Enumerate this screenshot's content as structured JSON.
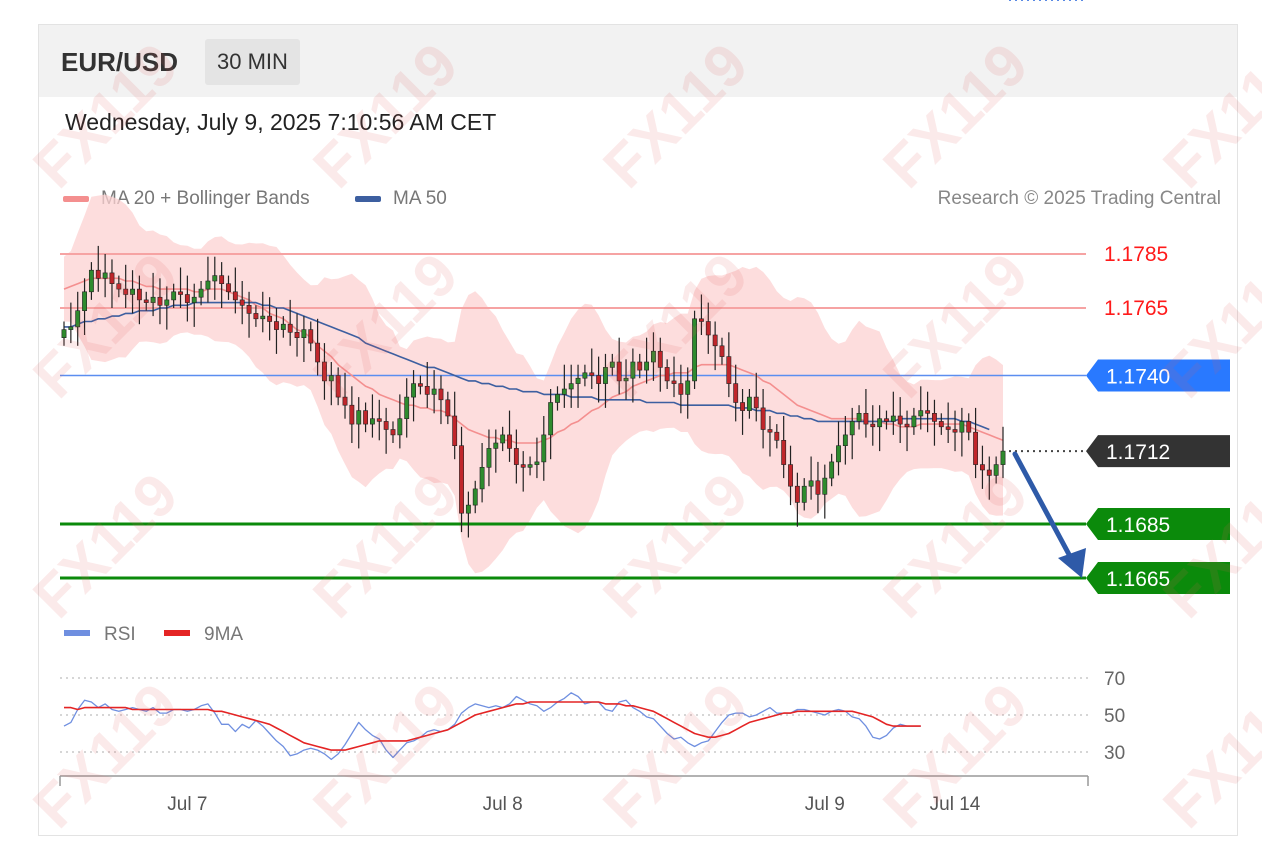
{
  "header": {
    "symbol": "EUR/USD",
    "interval": "30 MIN"
  },
  "datetime": "Wednesday, July 9, 2025 7:10:56 AM CET",
  "legend": {
    "ma20": {
      "label": "MA 20 + Bollinger Bands",
      "color": "#f48f8f"
    },
    "ma50": {
      "label": "MA 50",
      "color": "#3d5fa0"
    }
  },
  "credit": "Research © 2025 Trading Central",
  "rsi_legend": {
    "rsi": {
      "label": "RSI",
      "color": "#6f8fe0"
    },
    "ma9": {
      "label": "9MA",
      "color": "#e42424"
    }
  },
  "watermark": "FX119",
  "chart_data": [
    {
      "type": "candlestick",
      "ylim": [
        1.1652,
        1.1795
      ],
      "up_color": "#2e8b2e",
      "down_color": "#c0262b",
      "levels": [
        {
          "value": 1.1785,
          "label": "1.1785",
          "kind": "resistance",
          "color": "#ff1a1a"
        },
        {
          "value": 1.1765,
          "label": "1.1765",
          "kind": "resistance",
          "color": "#ff1a1a"
        },
        {
          "value": 1.174,
          "label": "1.1740",
          "kind": "pivot",
          "color": "#2979ff"
        },
        {
          "value": 1.1712,
          "label": "1.1712",
          "kind": "last",
          "color": "#333333"
        },
        {
          "value": 1.1685,
          "label": "1.1685",
          "kind": "support",
          "color": "#0b8a0b"
        },
        {
          "value": 1.1665,
          "label": "1.1665",
          "kind": "support",
          "color": "#0b8a0b"
        }
      ],
      "closes": [
        1.1757,
        1.1758,
        1.1764,
        1.1771,
        1.1779,
        1.1776,
        1.1778,
        1.1774,
        1.1772,
        1.177,
        1.1772,
        1.1768,
        1.1767,
        1.1769,
        1.1766,
        1.1768,
        1.1771,
        1.177,
        1.1767,
        1.1769,
        1.1772,
        1.1775,
        1.1777,
        1.1774,
        1.1771,
        1.1768,
        1.1766,
        1.1763,
        1.1761,
        1.1762,
        1.176,
        1.1757,
        1.1759,
        1.1756,
        1.1754,
        1.1757,
        1.1752,
        1.1745,
        1.1738,
        1.174,
        1.1732,
        1.1729,
        1.1722,
        1.1727,
        1.1722,
        1.1724,
        1.1723,
        1.172,
        1.1718,
        1.1724,
        1.1732,
        1.1737,
        1.1736,
        1.1733,
        1.1735,
        1.1731,
        1.1725,
        1.1714,
        1.1689,
        1.1692,
        1.1698,
        1.1706,
        1.1713,
        1.1715,
        1.1718,
        1.1713,
        1.1707,
        1.1706,
        1.1707,
        1.1708,
        1.1718,
        1.173,
        1.1733,
        1.1735,
        1.1737,
        1.1739,
        1.1741,
        1.174,
        1.1737,
        1.1743,
        1.1745,
        1.1738,
        1.1739,
        1.1745,
        1.1742,
        1.1745,
        1.1749,
        1.1743,
        1.1738,
        1.1737,
        1.1733,
        1.1738,
        1.1761,
        1.176,
        1.1755,
        1.1751,
        1.1747,
        1.1737,
        1.173,
        1.1727,
        1.1732,
        1.1728,
        1.172,
        1.1719,
        1.1716,
        1.1707,
        1.1699,
        1.1693,
        1.1699,
        1.1701,
        1.1696,
        1.1702,
        1.1708,
        1.1714,
        1.1718,
        1.1723,
        1.1726,
        1.1722,
        1.1721,
        1.1724,
        1.1723,
        1.1725,
        1.1722,
        1.1721,
        1.1725,
        1.1727,
        1.1726,
        1.1723,
        1.1721,
        1.172,
        1.1719,
        1.1723,
        1.1719,
        1.1707,
        1.1705,
        1.1703,
        1.1707,
        1.1712
      ],
      "ma20": [
        1.1772,
        1.1773,
        1.1774,
        1.1775,
        1.1776,
        1.1776,
        1.1776,
        1.1776,
        1.1776,
        1.1775,
        1.1775,
        1.1774,
        1.1773,
        1.1773,
        1.1772,
        1.1772,
        1.1772,
        1.1772,
        1.1772,
        1.1771,
        1.1771,
        1.1772,
        1.1772,
        1.1772,
        1.1771,
        1.177,
        1.1769,
        1.1768,
        1.1766,
        1.1765,
        1.1763,
        1.1762,
        1.1761,
        1.1759,
        1.1757,
        1.1756,
        1.1754,
        1.1751,
        1.1749,
        1.1747,
        1.1744,
        1.1742,
        1.174,
        1.1738,
        1.1736,
        1.1735,
        1.1733,
        1.1732,
        1.1731,
        1.173,
        1.1729,
        1.1729,
        1.1728,
        1.1728,
        1.1727,
        1.1727,
        1.1726,
        1.1724,
        1.1722,
        1.172,
        1.1719,
        1.1718,
        1.1717,
        1.1717,
        1.1716,
        1.1716,
        1.1715,
        1.1715,
        1.1715,
        1.1715,
        1.1716,
        1.1717,
        1.1719,
        1.172,
        1.1722,
        1.1723,
        1.1725,
        1.1727,
        1.1728,
        1.173,
        1.1732,
        1.1733,
        1.1734,
        1.1736,
        1.1737,
        1.1738,
        1.1739,
        1.174,
        1.174,
        1.1741,
        1.1741,
        1.1741,
        1.1743,
        1.1744,
        1.1744,
        1.1744,
        1.1744,
        1.1744,
        1.1743,
        1.1742,
        1.1741,
        1.174,
        1.1738,
        1.1737,
        1.1735,
        1.1733,
        1.1731,
        1.1729,
        1.1728,
        1.1727,
        1.1726,
        1.1725,
        1.1724,
        1.1724,
        1.1724,
        1.1724,
        1.1724,
        1.1723,
        1.1723,
        1.1723,
        1.1722,
        1.1722,
        1.1721,
        1.1721,
        1.1721,
        1.1722,
        1.1722,
        1.1722,
        1.1722,
        1.1722,
        1.1722,
        1.1722,
        1.1721,
        1.172,
        1.1719,
        1.1718,
        1.1717,
        1.1716
      ],
      "ma50": [
        1.1758,
        1.1758,
        1.1759,
        1.176,
        1.176,
        1.1761,
        1.1761,
        1.1762,
        1.1762,
        1.1763,
        1.1763,
        1.1764,
        1.1764,
        1.1764,
        1.1765,
        1.1765,
        1.1766,
        1.1766,
        1.1766,
        1.1767,
        1.1767,
        1.1767,
        1.1767,
        1.1767,
        1.1767,
        1.1767,
        1.1767,
        1.1767,
        1.1767,
        1.1766,
        1.1766,
        1.1765,
        1.1765,
        1.1764,
        1.1763,
        1.1762,
        1.1761,
        1.176,
        1.1759,
        1.1758,
        1.1757,
        1.1756,
        1.1755,
        1.1754,
        1.1752,
        1.1751,
        1.175,
        1.1749,
        1.1748,
        1.1747,
        1.1746,
        1.1745,
        1.1744,
        1.1743,
        1.1743,
        1.1742,
        1.1741,
        1.174,
        1.1739,
        1.1738,
        1.1738,
        1.1737,
        1.1737,
        1.1736,
        1.1736,
        1.1735,
        1.1735,
        1.1734,
        1.1734,
        1.1734,
        1.1733,
        1.1733,
        1.1733,
        1.1733,
        1.1732,
        1.1732,
        1.1732,
        1.1732,
        1.1731,
        1.1731,
        1.1731,
        1.1731,
        1.1731,
        1.1731,
        1.1731,
        1.173,
        1.173,
        1.173,
        1.173,
        1.173,
        1.1729,
        1.1729,
        1.1729,
        1.1729,
        1.1729,
        1.1729,
        1.1729,
        1.1729,
        1.1728,
        1.1728,
        1.1728,
        1.1727,
        1.1727,
        1.1727,
        1.1726,
        1.1726,
        1.1725,
        1.1725,
        1.1724,
        1.1724,
        1.1723,
        1.1723,
        1.1723,
        1.1723,
        1.1723,
        1.1723,
        1.1723,
        1.1723,
        1.1723,
        1.1723,
        1.1723,
        1.1723,
        1.1724,
        1.1724,
        1.1724,
        1.1724,
        1.1724,
        1.1724,
        1.1724,
        1.1724,
        1.1724,
        1.1723,
        1.1723,
        1.1722,
        1.1721,
        1.172
      ]
    },
    {
      "type": "line",
      "ylim": [
        20,
        80
      ],
      "ticks": [
        {
          "value": 70,
          "label": "70"
        },
        {
          "value": 50,
          "label": "50"
        },
        {
          "value": 30,
          "label": "30"
        }
      ],
      "x_ticks": [
        {
          "index": 18,
          "label": "Jul 7"
        },
        {
          "index": 64,
          "label": "Jul 8"
        },
        {
          "index": 111,
          "label": "Jul 9"
        },
        {
          "index": 130,
          "label": "Jul 14"
        }
      ],
      "series": [
        {
          "name": "RSI",
          "values": [
            44,
            46,
            53,
            58,
            57,
            54,
            56,
            53,
            52,
            53,
            54,
            53,
            52,
            54,
            51,
            51,
            53,
            53,
            52,
            53,
            55,
            56,
            51,
            45,
            45,
            41,
            45,
            43,
            47,
            44,
            40,
            36,
            33,
            28,
            29,
            31,
            32,
            31,
            29,
            26,
            29,
            34,
            40,
            46,
            42,
            39,
            37,
            31,
            27,
            31,
            35,
            36,
            38,
            41,
            42,
            41,
            42,
            45,
            51,
            54,
            56,
            55,
            54,
            55,
            54,
            56,
            60,
            58,
            56,
            55,
            52,
            54,
            57,
            59,
            62,
            60,
            56,
            57,
            57,
            53,
            52,
            57,
            58,
            54,
            52,
            49,
            48,
            44,
            40,
            37,
            38,
            35,
            33,
            35,
            36,
            41,
            46,
            50,
            51,
            51,
            49,
            50,
            52,
            54,
            51,
            51,
            51,
            53,
            53,
            52,
            51,
            50,
            52,
            53,
            52,
            49,
            48,
            44,
            38,
            37,
            39,
            43,
            45,
            44,
            44,
            44
          ]
        },
        {
          "name": "9MA",
          "values": [
            54,
            54,
            53,
            54,
            54,
            54,
            54,
            54,
            54,
            54,
            53,
            53,
            53,
            53,
            53,
            53,
            53,
            53,
            53,
            53,
            53,
            53,
            52,
            52,
            51,
            50,
            49,
            48,
            47,
            46,
            45,
            43,
            41,
            39,
            37,
            35,
            34,
            33,
            32,
            31,
            31,
            31,
            32,
            33,
            34,
            35,
            36,
            36,
            36,
            36,
            36,
            37,
            38,
            39,
            40,
            41,
            42,
            44,
            46,
            48,
            50,
            51,
            52,
            53,
            54,
            55,
            56,
            56,
            57,
            57,
            57,
            57,
            57,
            57,
            57,
            57,
            57,
            57,
            57,
            56,
            56,
            56,
            55,
            55,
            54,
            53,
            52,
            50,
            48,
            46,
            44,
            42,
            40,
            39,
            38,
            38,
            39,
            40,
            42,
            44,
            46,
            47,
            48,
            49,
            50,
            51,
            51,
            52,
            52,
            52,
            52,
            52,
            52,
            52,
            52,
            52,
            51,
            50,
            49,
            47,
            45,
            44,
            44,
            44,
            44,
            44
          ]
        }
      ]
    }
  ]
}
